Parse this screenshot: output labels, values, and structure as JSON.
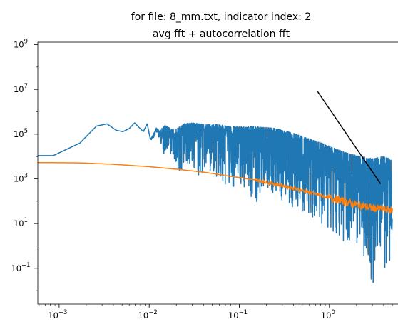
{
  "chart_data": {
    "type": "line",
    "title_line1": "for file: 8_mm.txt, indicator index: 2",
    "title_line2": "avg fft + autocorrelation fft",
    "xlabel": "",
    "ylabel": "",
    "xscale": "log",
    "yscale": "log",
    "xlim": [
      0.00058,
      6.8
    ],
    "ylim": [
      0.0025,
      1300000000.0
    ],
    "grid": false,
    "colors": {
      "series1": "#1f77b4",
      "series2": "#ff7f0e",
      "reference": "#000000"
    },
    "x_ticks": [
      {
        "base": "10",
        "exp": "−3",
        "value": 0.001
      },
      {
        "base": "10",
        "exp": "−2",
        "value": 0.01
      },
      {
        "base": "10",
        "exp": "−1",
        "value": 0.1
      },
      {
        "base": "10",
        "exp": "0",
        "value": 1
      }
    ],
    "y_ticks": [
      {
        "base": "10",
        "exp": "−1",
        "value": 0.1
      },
      {
        "base": "10",
        "exp": "1",
        "value": 10
      },
      {
        "base": "10",
        "exp": "3",
        "value": 1000
      },
      {
        "base": "10",
        "exp": "5",
        "value": 100000
      },
      {
        "base": "10",
        "exp": "7",
        "value": 10000000
      },
      {
        "base": "10",
        "exp": "9",
        "value": 1000000000
      }
    ],
    "series": [
      {
        "key": "avg_fft",
        "values_upper": [
          [
            0.00058,
            11000
          ],
          [
            0.00086,
            11000
          ],
          [
            0.0017,
            40000
          ],
          [
            0.0026,
            230000
          ],
          [
            0.0034,
            290000
          ],
          [
            0.0043,
            150000
          ],
          [
            0.0051,
            130000
          ],
          [
            0.006,
            180000
          ],
          [
            0.0069,
            320000
          ],
          [
            0.0077,
            200000
          ],
          [
            0.0086,
            130000
          ],
          [
            0.0095,
            290000
          ],
          [
            0.0103,
            60000
          ],
          [
            0.011,
            90000
          ],
          [
            0.012,
            190000
          ],
          [
            0.013,
            140000
          ],
          [
            0.015,
            250000
          ],
          [
            0.018,
            160000
          ],
          [
            0.02,
            170000
          ],
          [
            0.025,
            300000
          ],
          [
            0.03,
            320000
          ],
          [
            0.04,
            270000
          ],
          [
            0.06,
            260000
          ],
          [
            0.09,
            210000
          ],
          [
            0.15,
            220000
          ],
          [
            0.25,
            180000
          ],
          [
            0.4,
            110000
          ],
          [
            0.6,
            60000
          ],
          [
            1.0,
            30000
          ],
          [
            1.5,
            15000
          ],
          [
            2.2,
            10000
          ],
          [
            3.0,
            8000
          ],
          [
            4.0,
            10000
          ],
          [
            5.0,
            7000
          ]
        ],
        "values_lower": [
          [
            0.0103,
            50000
          ],
          [
            0.011,
            60000
          ],
          [
            0.012,
            120000
          ],
          [
            0.013,
            60000
          ],
          [
            0.015,
            8000
          ],
          [
            0.018,
            8000
          ],
          [
            0.02,
            5000
          ],
          [
            0.023,
            600
          ],
          [
            0.025,
            4000
          ],
          [
            0.03,
            3000
          ],
          [
            0.04,
            800
          ],
          [
            0.05,
            2000
          ],
          [
            0.08,
            300
          ],
          [
            0.1,
            500
          ],
          [
            0.15,
            60
          ],
          [
            0.2,
            400
          ],
          [
            0.3,
            80
          ],
          [
            0.4,
            40
          ],
          [
            0.6,
            20
          ],
          [
            0.8,
            8
          ],
          [
            1.0,
            5
          ],
          [
            1.2,
            3
          ],
          [
            1.6,
            1.0
          ],
          [
            2.0,
            0.8
          ],
          [
            2.5,
            0.3
          ],
          [
            3.0,
            0.012
          ],
          [
            3.6,
            0.5
          ],
          [
            4.2,
            0.06
          ],
          [
            5.0,
            0.08
          ]
        ]
      },
      {
        "key": "autocorrelation_fft",
        "values": [
          [
            0.00058,
            5300
          ],
          [
            0.00086,
            5300
          ],
          [
            0.0017,
            5200
          ],
          [
            0.004,
            4500
          ],
          [
            0.01,
            3500
          ],
          [
            0.02,
            2700
          ],
          [
            0.04,
            2000
          ],
          [
            0.08,
            1300
          ],
          [
            0.15,
            900
          ],
          [
            0.3,
            500
          ],
          [
            0.5,
            300
          ],
          [
            0.8,
            180
          ],
          [
            1.2,
            120
          ],
          [
            2.0,
            70
          ],
          [
            3.0,
            50
          ],
          [
            5.0,
            40
          ]
        ]
      },
      {
        "key": "reference_line",
        "values": [
          [
            0.74,
            8000000
          ],
          [
            3.7,
            600
          ]
        ]
      }
    ]
  }
}
